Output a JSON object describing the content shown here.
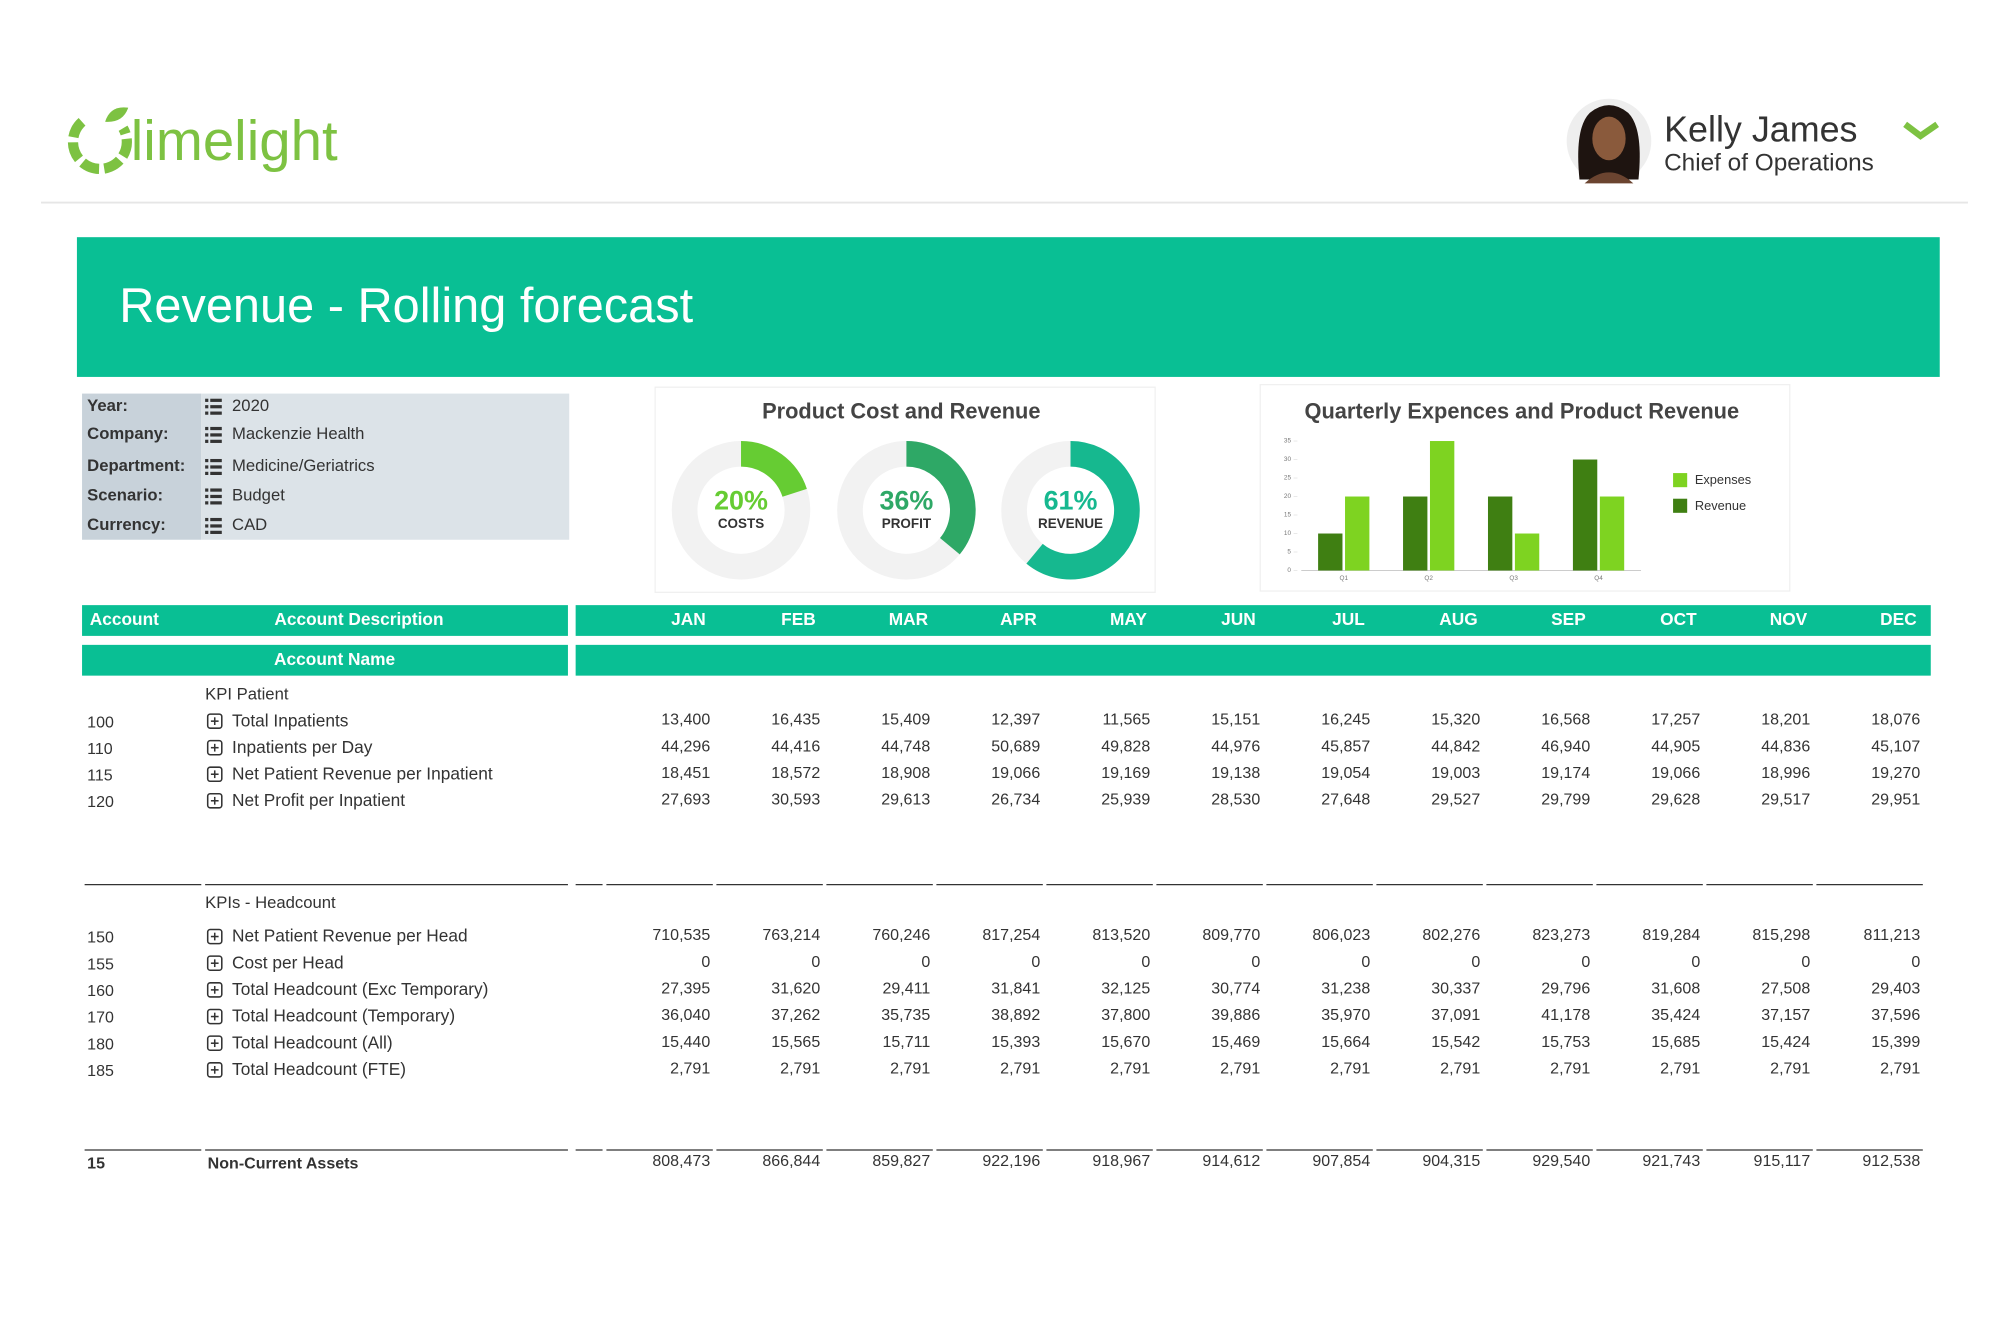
{
  "header": {
    "logo": "limelight",
    "user_name": "Kelly James",
    "user_role": "Chief of Operations"
  },
  "banner": {
    "title": "Revenue - Rolling forecast"
  },
  "filters": [
    {
      "label": "Year:",
      "value": "2020"
    },
    {
      "label": "Company:",
      "value": "Mackenzie Health"
    },
    {
      "label": "Department:",
      "value": "Medicine/Geriatrics"
    },
    {
      "label": "Scenario:",
      "value": "Budget"
    },
    {
      "label": "Currency:",
      "value": "CAD"
    }
  ],
  "chart_data": [
    {
      "type": "donut",
      "title": "Product Cost and Revenue",
      "categories": [
        "COSTS",
        "PROFIT",
        "REVENUE"
      ],
      "values": [
        20,
        36,
        61
      ],
      "value_labels": [
        "20%",
        "36%",
        "61%"
      ],
      "colors": [
        "#66cc33",
        "#2ea866",
        "#16b88f"
      ]
    },
    {
      "type": "bar",
      "title": "Quarterly Expences and Product Revenue",
      "categories": [
        "Q1",
        "Q2",
        "Q3",
        "Q4"
      ],
      "series": [
        {
          "name": "Expenses",
          "color": "#7ed321",
          "values": [
            20,
            35,
            10,
            20
          ]
        },
        {
          "name": "Revenue",
          "color": "#3f7f12",
          "values": [
            10,
            20,
            20,
            30
          ]
        }
      ],
      "ylim": [
        0,
        35
      ],
      "yticks": [
        0,
        5,
        10,
        15,
        20,
        25,
        30,
        35
      ],
      "legend": "right"
    }
  ],
  "table": {
    "columns": [
      "Account",
      "Account Description"
    ],
    "months": [
      "JAN",
      "FEB",
      "MAR",
      "APR",
      "MAY",
      "JUN",
      "JUL",
      "AUG",
      "SEP",
      "OCT",
      "NOV",
      "DEC"
    ],
    "subheader": "Account Name",
    "sections": [
      {
        "title": "KPI Patient",
        "rows": [
          {
            "account": "100",
            "description": "Total Inpatients",
            "values": [
              "13,400",
              "16,435",
              "15,409",
              "12,397",
              "11,565",
              "15,151",
              "16,245",
              "15,320",
              "16,568",
              "17,257",
              "18,201",
              "18,076"
            ]
          },
          {
            "account": "110",
            "description": "Inpatients per Day",
            "values": [
              "44,296",
              "44,416",
              "44,748",
              "50,689",
              "49,828",
              "44,976",
              "45,857",
              "44,842",
              "46,940",
              "44,905",
              "44,836",
              "45,107"
            ]
          },
          {
            "account": "115",
            "description": "Net Patient Revenue per Inpatient",
            "values": [
              "18,451",
              "18,572",
              "18,908",
              "19,066",
              "19,169",
              "19,138",
              "19,054",
              "19,003",
              "19,174",
              "19,066",
              "18,996",
              "19,270"
            ]
          },
          {
            "account": "120",
            "description": "Net Profit per Inpatient",
            "values": [
              "27,693",
              "30,593",
              "29,613",
              "26,734",
              "25,939",
              "28,530",
              "27,648",
              "29,527",
              "29,799",
              "29,628",
              "29,517",
              "29,951"
            ]
          }
        ]
      },
      {
        "title": "KPIs - Headcount",
        "rows": [
          {
            "account": "150",
            "description": "Net Patient Revenue per Head",
            "values": [
              "710,535",
              "763,214",
              "760,246",
              "817,254",
              "813,520",
              "809,770",
              "806,023",
              "802,276",
              "823,273",
              "819,284",
              "815,298",
              "811,213"
            ]
          },
          {
            "account": "155",
            "description": "Cost per Head",
            "values": [
              "0",
              "0",
              "0",
              "0",
              "0",
              "0",
              "0",
              "0",
              "0",
              "0",
              "0",
              "0"
            ]
          },
          {
            "account": "160",
            "description": "Total Headcount (Exc Temporary)",
            "values": [
              "27,395",
              "31,620",
              "29,411",
              "31,841",
              "32,125",
              "30,774",
              "31,238",
              "30,337",
              "29,796",
              "31,608",
              "27,508",
              "29,403"
            ]
          },
          {
            "account": "170",
            "description": "Total Headcount (Temporary)",
            "values": [
              "36,040",
              "37,262",
              "35,735",
              "38,892",
              "37,800",
              "39,886",
              "35,970",
              "37,091",
              "41,178",
              "35,424",
              "37,157",
              "37,596"
            ]
          },
          {
            "account": "180",
            "description": "Total Headcount (All)",
            "values": [
              "15,440",
              "15,565",
              "15,711",
              "15,393",
              "15,670",
              "15,469",
              "15,664",
              "15,542",
              "15,753",
              "15,685",
              "15,424",
              "15,399"
            ]
          },
          {
            "account": "185",
            "description": "Total Headcount (FTE)",
            "values": [
              "2,791",
              "2,791",
              "2,791",
              "2,791",
              "2,791",
              "2,791",
              "2,791",
              "2,791",
              "2,791",
              "2,791",
              "2,791",
              "2,791"
            ]
          }
        ]
      }
    ],
    "total": {
      "account": "15",
      "description": "Non-Current Assets",
      "values": [
        "808,473",
        "866,844",
        "859,827",
        "922,196",
        "918,967",
        "914,612",
        "907,854",
        "904,315",
        "929,540",
        "921,743",
        "915,117",
        "912,538"
      ]
    }
  }
}
